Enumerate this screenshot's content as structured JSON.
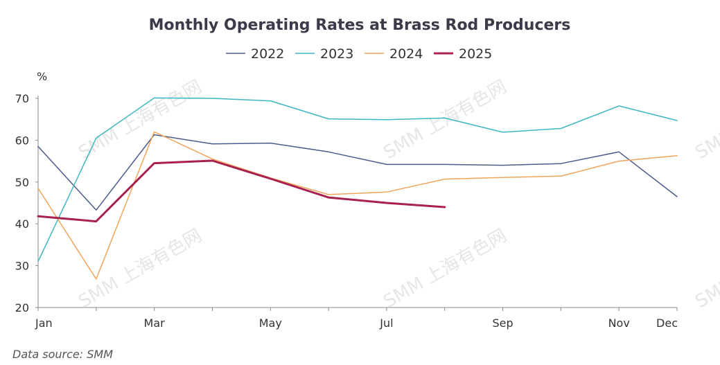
{
  "watermark": "SMM 上海有色网",
  "chart_data": {
    "type": "line",
    "title": "Monthly Operating Rates at Brass Rod Producers",
    "ylabel": "%",
    "xlabel": "",
    "source": "Data source:  SMM",
    "x_tick_labels": [
      "Jan",
      "Mar",
      "May",
      "Jul",
      "Sep",
      "Nov",
      "Dec"
    ],
    "x_tick_months": [
      1,
      3,
      5,
      7,
      9,
      11,
      12
    ],
    "x_range": [
      1,
      12
    ],
    "ylim": [
      20,
      70
    ],
    "y_ticks": [
      20,
      30,
      40,
      50,
      60,
      70
    ],
    "legend_position": "top-center",
    "series": [
      {
        "name": "2022",
        "color": "#4a5a8c",
        "width": 1.5,
        "x": [
          1,
          2,
          3,
          4,
          5,
          6,
          7,
          8,
          9,
          10,
          11,
          12
        ],
        "values": [
          58.5,
          43.3,
          61.3,
          59.1,
          59.3,
          57.2,
          54.2,
          54.2,
          54.0,
          54.4,
          57.2,
          46.5
        ]
      },
      {
        "name": "2023",
        "color": "#3eb6c2",
        "width": 1.5,
        "x": [
          1,
          2,
          3,
          4,
          5,
          6,
          7,
          8,
          9,
          10,
          11,
          12
        ],
        "values": [
          31.0,
          60.5,
          70.1,
          70.0,
          69.4,
          65.1,
          64.9,
          65.3,
          61.9,
          62.8,
          68.2,
          64.7
        ]
      },
      {
        "name": "2024",
        "color": "#f0a45a",
        "width": 1.5,
        "x": [
          1,
          2,
          3,
          4,
          5,
          6,
          7,
          8,
          9,
          10,
          11,
          12
        ],
        "values": [
          48.5,
          26.8,
          62.0,
          55.5,
          51.0,
          47.0,
          47.6,
          50.7,
          51.1,
          51.4,
          55.0,
          56.3
        ]
      },
      {
        "name": "2025",
        "color": "#a8204d",
        "width": 3,
        "x": [
          1,
          2,
          3,
          4,
          5,
          6,
          7,
          8
        ],
        "values": [
          41.8,
          40.6,
          54.5,
          55.1,
          50.8,
          46.3,
          45.0,
          44.0
        ]
      }
    ]
  }
}
